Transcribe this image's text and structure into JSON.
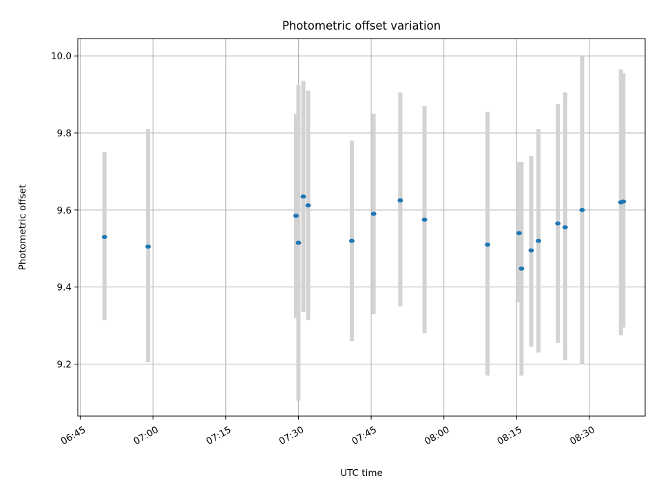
{
  "chart_data": {
    "type": "scatter",
    "title": "Photometric offset variation",
    "xlabel": "UTC time",
    "ylabel": "Photometric offset",
    "xlim": [
      "06:44:30",
      "08:41:30"
    ],
    "ylim": [
      9.065,
      10.045
    ],
    "xticks": [
      "06:45",
      "07:00",
      "07:15",
      "07:30",
      "07:45",
      "08:00",
      "08:15",
      "08:30"
    ],
    "yticks": [
      9.2,
      9.4,
      9.6,
      9.8,
      10.0
    ],
    "ytick_labels": [
      "9.2",
      "9.4",
      "9.6",
      "9.8",
      "10.0"
    ],
    "grid": true,
    "errorbar_color": "#d3d3d3",
    "point_color": "#1f77b4",
    "series": [
      {
        "points": [
          {
            "x": "06:50:00",
            "y": 9.53,
            "ylow": 9.315,
            "yhigh": 9.75
          },
          {
            "x": "06:59:00",
            "y": 9.505,
            "ylow": 9.205,
            "yhigh": 9.81
          },
          {
            "x": "07:29:30",
            "y": 9.585,
            "ylow": 9.32,
            "yhigh": 9.85
          },
          {
            "x": "07:30:00",
            "y": 9.515,
            "ylow": 9.105,
            "yhigh": 9.925
          },
          {
            "x": "07:31:00",
            "y": 9.635,
            "ylow": 9.335,
            "yhigh": 9.935
          },
          {
            "x": "07:32:00",
            "y": 9.612,
            "ylow": 9.315,
            "yhigh": 9.91
          },
          {
            "x": "07:41:00",
            "y": 9.52,
            "ylow": 9.26,
            "yhigh": 9.78
          },
          {
            "x": "07:45:30",
            "y": 9.59,
            "ylow": 9.33,
            "yhigh": 9.85
          },
          {
            "x": "07:51:00",
            "y": 9.625,
            "ylow": 9.35,
            "yhigh": 9.905
          },
          {
            "x": "07:56:00",
            "y": 9.575,
            "ylow": 9.28,
            "yhigh": 9.87
          },
          {
            "x": "08:09:00",
            "y": 9.51,
            "ylow": 9.17,
            "yhigh": 9.855
          },
          {
            "x": "08:15:30",
            "y": 9.54,
            "ylow": 9.36,
            "yhigh": 9.725
          },
          {
            "x": "08:16:00",
            "y": 9.448,
            "ylow": 9.17,
            "yhigh": 9.725
          },
          {
            "x": "08:18:00",
            "y": 9.495,
            "ylow": 9.245,
            "yhigh": 9.74
          },
          {
            "x": "08:19:30",
            "y": 9.52,
            "ylow": 9.23,
            "yhigh": 9.81
          },
          {
            "x": "08:23:30",
            "y": 9.565,
            "ylow": 9.255,
            "yhigh": 9.875
          },
          {
            "x": "08:25:00",
            "y": 9.555,
            "ylow": 9.21,
            "yhigh": 9.905
          },
          {
            "x": "08:28:30",
            "y": 9.6,
            "ylow": 9.2,
            "yhigh": 10.0
          },
          {
            "x": "08:36:30",
            "y": 9.62,
            "ylow": 9.275,
            "yhigh": 9.965
          },
          {
            "x": "08:37:00",
            "y": 9.622,
            "ylow": 9.295,
            "yhigh": 9.955
          }
        ]
      }
    ]
  }
}
